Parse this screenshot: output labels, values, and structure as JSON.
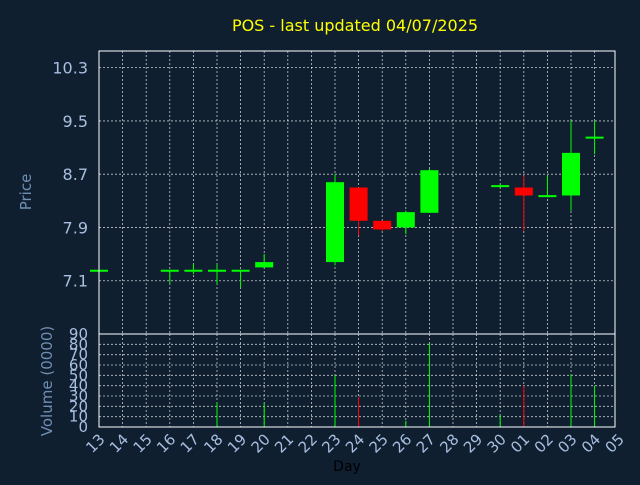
{
  "title": "POS - last updated 04/07/2025",
  "colors": {
    "background": "#0f1f30",
    "title": "#ffff00",
    "axis_label": "#6f8fb3",
    "tick_label": "#a8bfe0",
    "frame": "#ffffff",
    "grid": "#ffffff",
    "up": "#00ff00",
    "down": "#ff0000"
  },
  "chart_data": [
    {
      "type": "candlestick",
      "ylabel": "Price",
      "yticks": [
        7.1,
        7.9,
        8.7,
        9.5,
        10.3
      ],
      "ytick_labels": [
        "7.1",
        "7.9",
        "8.7",
        "9.5",
        "10.3"
      ],
      "ylim": [
        6.3,
        10.55
      ],
      "grid": true,
      "x_categories": [
        "13",
        "14",
        "15",
        "16",
        "17",
        "18",
        "19",
        "20",
        "21",
        "22",
        "23",
        "24",
        "25",
        "26",
        "27",
        "28",
        "29",
        "30",
        "01",
        "02",
        "03",
        "04",
        "05"
      ],
      "candles": [
        {
          "x": "13",
          "open": 7.25,
          "high": 7.25,
          "low": 7.25,
          "close": 7.25
        },
        {
          "x": "16",
          "open": 7.25,
          "high": 7.25,
          "low": 7.05,
          "close": 7.25
        },
        {
          "x": "17",
          "open": 7.25,
          "high": 7.35,
          "low": 7.2,
          "close": 7.25
        },
        {
          "x": "18",
          "open": 7.25,
          "high": 7.35,
          "low": 7.05,
          "close": 7.25
        },
        {
          "x": "19",
          "open": 7.25,
          "high": 7.25,
          "low": 7.0,
          "close": 7.25
        },
        {
          "x": "20",
          "open": 7.3,
          "high": 7.5,
          "low": 7.3,
          "close": 7.38
        },
        {
          "x": "23",
          "open": 7.38,
          "high": 8.7,
          "low": 7.33,
          "close": 8.58
        },
        {
          "x": "24",
          "open": 8.5,
          "high": 8.5,
          "low": 7.78,
          "close": 8.0
        },
        {
          "x": "25",
          "open": 8.0,
          "high": 8.0,
          "low": 7.85,
          "close": 7.87
        },
        {
          "x": "26",
          "open": 7.9,
          "high": 8.15,
          "low": 7.8,
          "close": 8.13
        },
        {
          "x": "27",
          "open": 8.12,
          "high": 8.78,
          "low": 8.12,
          "close": 8.76
        },
        {
          "x": "30",
          "open": 8.5,
          "high": 8.55,
          "low": 8.5,
          "close": 8.52
        },
        {
          "x": "01",
          "open": 8.5,
          "high": 8.68,
          "low": 7.85,
          "close": 8.38
        },
        {
          "x": "02",
          "open": 8.35,
          "high": 8.68,
          "low": 8.35,
          "close": 8.37
        },
        {
          "x": "03",
          "open": 8.38,
          "high": 9.5,
          "low": 8.15,
          "close": 9.02
        },
        {
          "x": "04",
          "open": 9.25,
          "high": 9.5,
          "low": 9.0,
          "close": 9.25
        }
      ]
    },
    {
      "type": "bar",
      "ylabel": "Volume (0000)",
      "xlabel": "Day",
      "yticks": [
        0,
        10,
        20,
        30,
        40,
        50,
        60,
        70,
        80,
        90
      ],
      "ytick_labels": [
        "0",
        "10",
        "20",
        "30",
        "40",
        "50",
        "60",
        "70",
        "80",
        "90"
      ],
      "ylim": [
        0,
        90
      ],
      "grid": true,
      "categories": [
        "13",
        "14",
        "15",
        "16",
        "17",
        "18",
        "19",
        "20",
        "21",
        "22",
        "23",
        "24",
        "25",
        "26",
        "27",
        "28",
        "29",
        "30",
        "01",
        "02",
        "03",
        "04",
        "05"
      ],
      "bars": [
        {
          "x": "18",
          "value": 24,
          "direction": "up"
        },
        {
          "x": "20",
          "value": 23,
          "direction": "up"
        },
        {
          "x": "23",
          "value": 50,
          "direction": "up"
        },
        {
          "x": "24",
          "value": 29,
          "direction": "down"
        },
        {
          "x": "26",
          "value": 6,
          "direction": "up"
        },
        {
          "x": "27",
          "value": 81,
          "direction": "up"
        },
        {
          "x": "30",
          "value": 12,
          "direction": "up"
        },
        {
          "x": "01",
          "value": 40,
          "direction": "down"
        },
        {
          "x": "03",
          "value": 51,
          "direction": "up"
        },
        {
          "x": "04",
          "value": 40,
          "direction": "up"
        }
      ]
    }
  ]
}
